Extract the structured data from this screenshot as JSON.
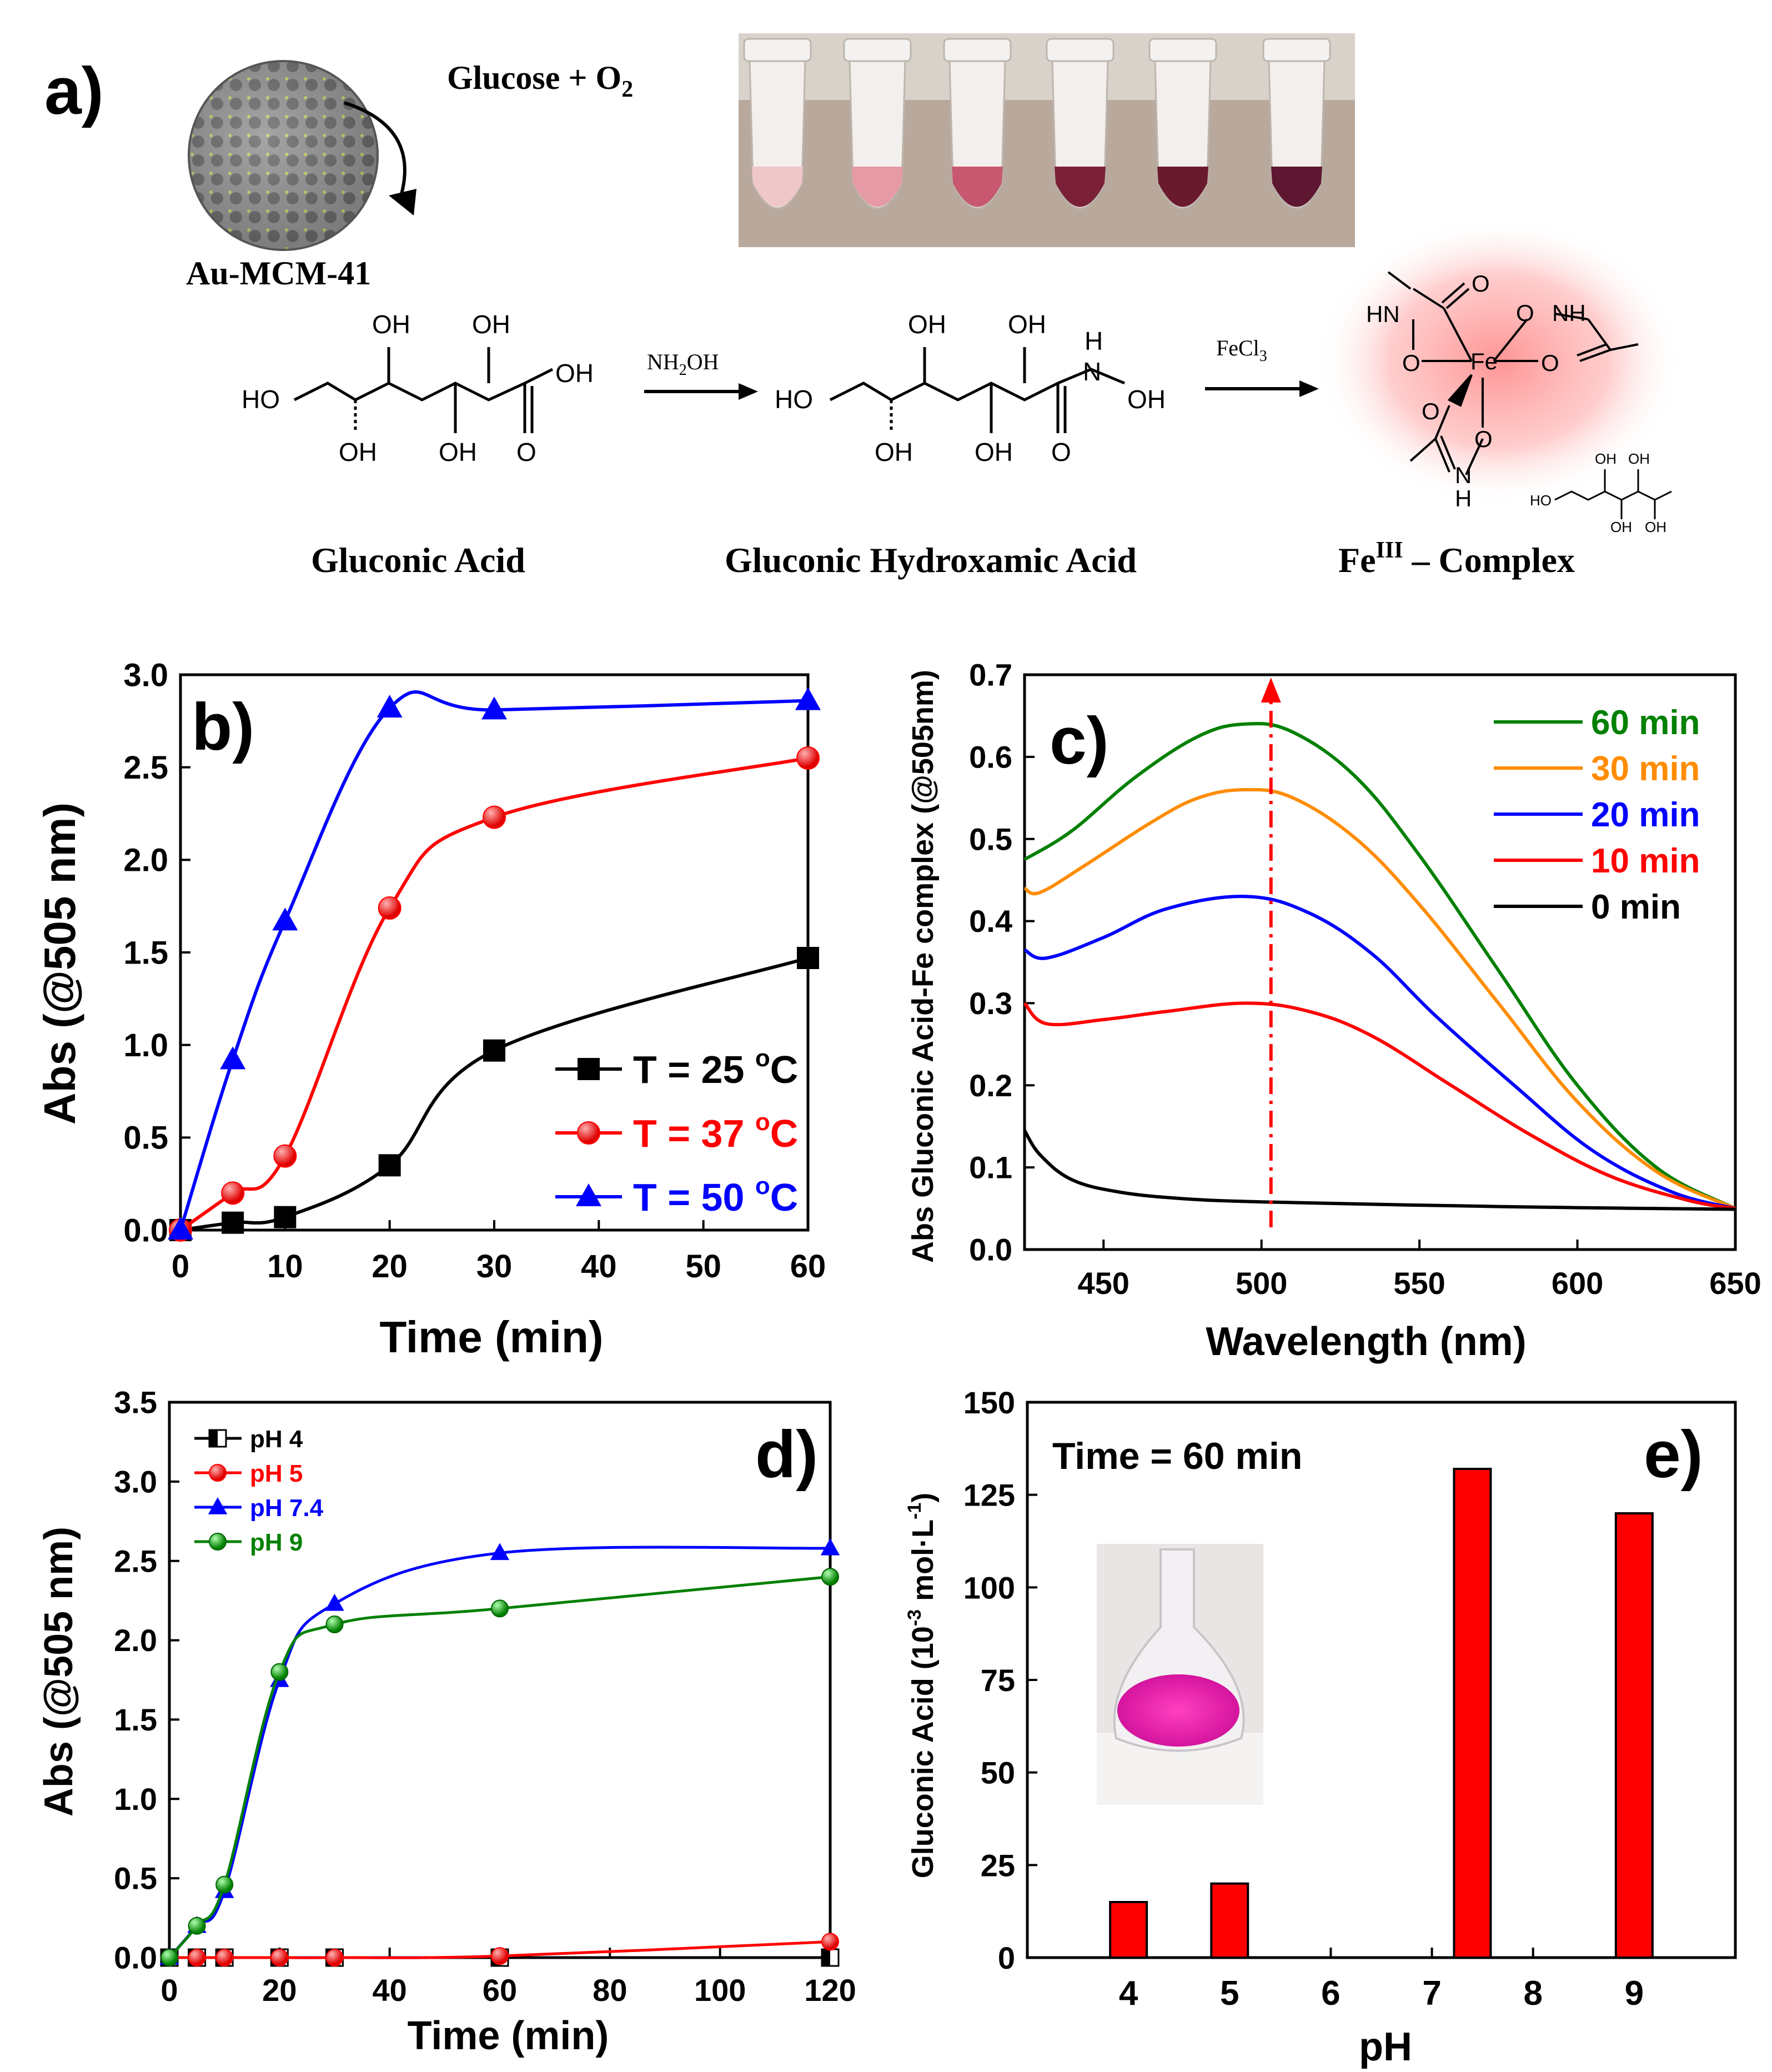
{
  "panel_a": {
    "label": "a)",
    "nanoparticle_label": "Au-MCM-41",
    "reaction_text": "Glucose + O",
    "reaction_sub": "2",
    "reagent1": "NH2OH",
    "reagent1_main": "NH",
    "reagent1_sub": "2",
    "reagent1_tail": "OH",
    "reagent2": "FeCl3",
    "reagent2_main": "FeCl",
    "reagent2_sub": "3",
    "compound1": "Gluconic Acid",
    "compound2": "Gluconic Hydroxamic Acid",
    "compound3_main": "Fe",
    "compound3_sup": "III",
    "compound3_tail": " – Complex",
    "atoms": {
      "oh": "OH",
      "ho": "HO",
      "o": "O",
      "n": "N",
      "h": "H",
      "hn": "HN",
      "nh": "NH",
      "fe": "Fe"
    },
    "colors": {
      "tube_liquid": [
        "#f0c7c9",
        "#e59aa5",
        "#c75870",
        "#7a2137",
        "#6a1a2e",
        "#5e1730"
      ],
      "glow": "#ff8080"
    }
  },
  "chart_data": [
    {
      "panel": "b)",
      "type": "line",
      "xlabel": "Time (min)",
      "ylabel": "Abs (@505 nm)",
      "xlim": [
        0,
        60
      ],
      "ylim": [
        0,
        3.0
      ],
      "xticks": [
        "0",
        "10",
        "20",
        "30",
        "40",
        "50",
        "60"
      ],
      "yticks": [
        "0.0",
        "0.5",
        "1.0",
        "1.5",
        "2.0",
        "2.5",
        "3.0"
      ],
      "legend": "bottom-right",
      "series": [
        {
          "name": "T = 25 °C",
          "label": "T = 25",
          "unit": "C",
          "color": "#000000",
          "marker": "square",
          "x": [
            0,
            5,
            10,
            20,
            30,
            60
          ],
          "y": [
            0.0,
            0.04,
            0.07,
            0.35,
            0.97,
            1.47
          ]
        },
        {
          "name": "T = 37 °C",
          "label": "T = 37",
          "unit": "C",
          "color": "#ff0000",
          "marker": "circle",
          "x": [
            0,
            5,
            10,
            20,
            30,
            60
          ],
          "y": [
            0.0,
            0.2,
            0.4,
            1.74,
            2.23,
            2.55
          ]
        },
        {
          "name": "T = 50 °C",
          "label": "T = 50",
          "unit": "C",
          "color": "#0000ff",
          "marker": "triangle",
          "x": [
            0,
            5,
            10,
            20,
            30,
            60
          ],
          "y": [
            0.0,
            0.92,
            1.67,
            2.82,
            2.81,
            2.86
          ]
        }
      ]
    },
    {
      "panel": "c)",
      "type": "line",
      "xlabel": "Wavelength (nm)",
      "ylabel": "Abs Gluconic Acid-Fe complex (@505nm)",
      "xlim": [
        425,
        650
      ],
      "ylim": [
        0,
        0.7
      ],
      "xticks": [
        "450",
        "500",
        "550",
        "600",
        "650"
      ],
      "yticks": [
        "0.0",
        "0.1",
        "0.2",
        "0.3",
        "0.4",
        "0.5",
        "0.6",
        "0.7"
      ],
      "legend": "top-right",
      "marker_line_x": 503,
      "series": [
        {
          "name": "60 min",
          "color": "#008000",
          "x": [
            425,
            440,
            460,
            480,
            495,
            510,
            530,
            550,
            575,
            600,
            625,
            650
          ],
          "y": [
            0.475,
            0.51,
            0.575,
            0.625,
            0.64,
            0.63,
            0.575,
            0.48,
            0.34,
            0.2,
            0.1,
            0.05
          ]
        },
        {
          "name": "30 min",
          "color": "#ff8c00",
          "x": [
            425,
            430,
            445,
            465,
            480,
            495,
            510,
            530,
            550,
            575,
            600,
            625,
            650
          ],
          "y": [
            0.44,
            0.435,
            0.47,
            0.52,
            0.55,
            0.56,
            0.55,
            0.5,
            0.42,
            0.3,
            0.18,
            0.095,
            0.05
          ]
        },
        {
          "name": "20 min",
          "color": "#0000ff",
          "x": [
            425,
            432,
            450,
            470,
            495,
            515,
            535,
            555,
            580,
            605,
            630,
            650
          ],
          "y": [
            0.365,
            0.355,
            0.38,
            0.415,
            0.43,
            0.41,
            0.36,
            0.285,
            0.2,
            0.12,
            0.07,
            0.05
          ]
        },
        {
          "name": "10 min",
          "color": "#ff0000",
          "x": [
            425,
            432,
            450,
            470,
            495,
            515,
            535,
            560,
            585,
            610,
            635,
            650
          ],
          "y": [
            0.3,
            0.275,
            0.28,
            0.29,
            0.3,
            0.29,
            0.26,
            0.2,
            0.14,
            0.09,
            0.06,
            0.05
          ]
        },
        {
          "name": "0  min",
          "color": "#000000",
          "x": [
            425,
            430,
            440,
            455,
            475,
            500,
            550,
            600,
            650
          ],
          "y": [
            0.145,
            0.115,
            0.085,
            0.07,
            0.062,
            0.058,
            0.054,
            0.051,
            0.049
          ]
        }
      ]
    },
    {
      "panel": "d)",
      "type": "line",
      "xlabel": "Time (min)",
      "ylabel": "Abs (@505 nm)",
      "xlim": [
        0,
        120
      ],
      "ylim": [
        0,
        3.5
      ],
      "xticks": [
        "0",
        "20",
        "40",
        "60",
        "80",
        "100",
        "120"
      ],
      "yticks": [
        "0.0",
        "0.5",
        "1.0",
        "1.5",
        "2.0",
        "2.5",
        "3.0",
        "3.5"
      ],
      "legend": "top-left",
      "series": [
        {
          "name": "pH 4",
          "color": "#000000",
          "marker": "half-square",
          "x": [
            0,
            5,
            10,
            20,
            30,
            60,
            120
          ],
          "y": [
            0,
            0,
            0,
            0,
            0,
            0,
            0
          ]
        },
        {
          "name": "pH 5",
          "color": "#ff0000",
          "marker": "circle",
          "x": [
            0,
            5,
            10,
            20,
            30,
            60,
            120
          ],
          "y": [
            0,
            0,
            0,
            0,
            0,
            0.01,
            0.1
          ]
        },
        {
          "name": "pH 7.4",
          "color": "#0000ff",
          "marker": "triangle",
          "x": [
            0,
            5,
            10,
            20,
            30,
            60,
            120
          ],
          "y": [
            0,
            0.2,
            0.42,
            1.75,
            2.23,
            2.55,
            2.58
          ]
        },
        {
          "name": "pH 9",
          "color": "#008000",
          "marker": "circle-green",
          "x": [
            0,
            5,
            10,
            20,
            30,
            60,
            120
          ],
          "y": [
            0,
            0.2,
            0.46,
            1.8,
            2.1,
            2.2,
            2.4
          ]
        }
      ]
    },
    {
      "panel": "e)",
      "type": "bar",
      "annotation": "Time = 60 min",
      "xlabel": "pH",
      "ylabel": "Gluconic Acid (10-3 mol·L-1)",
      "ylabel_parts": {
        "a": "Gluconic Acid (10",
        "b": "-3",
        "c": " mol·L",
        "d": "-1",
        "e": ")"
      },
      "xlim": [
        3,
        10
      ],
      "ylim": [
        0,
        150
      ],
      "xticks": [
        "4",
        "5",
        "6",
        "7",
        "8",
        "9"
      ],
      "yticks": [
        "0",
        "25",
        "50",
        "75",
        "100",
        "125",
        "150"
      ],
      "bar_color": "#ff0000",
      "categories": [
        4,
        5,
        7.4,
        9
      ],
      "values": [
        15,
        20,
        132,
        120
      ]
    }
  ]
}
